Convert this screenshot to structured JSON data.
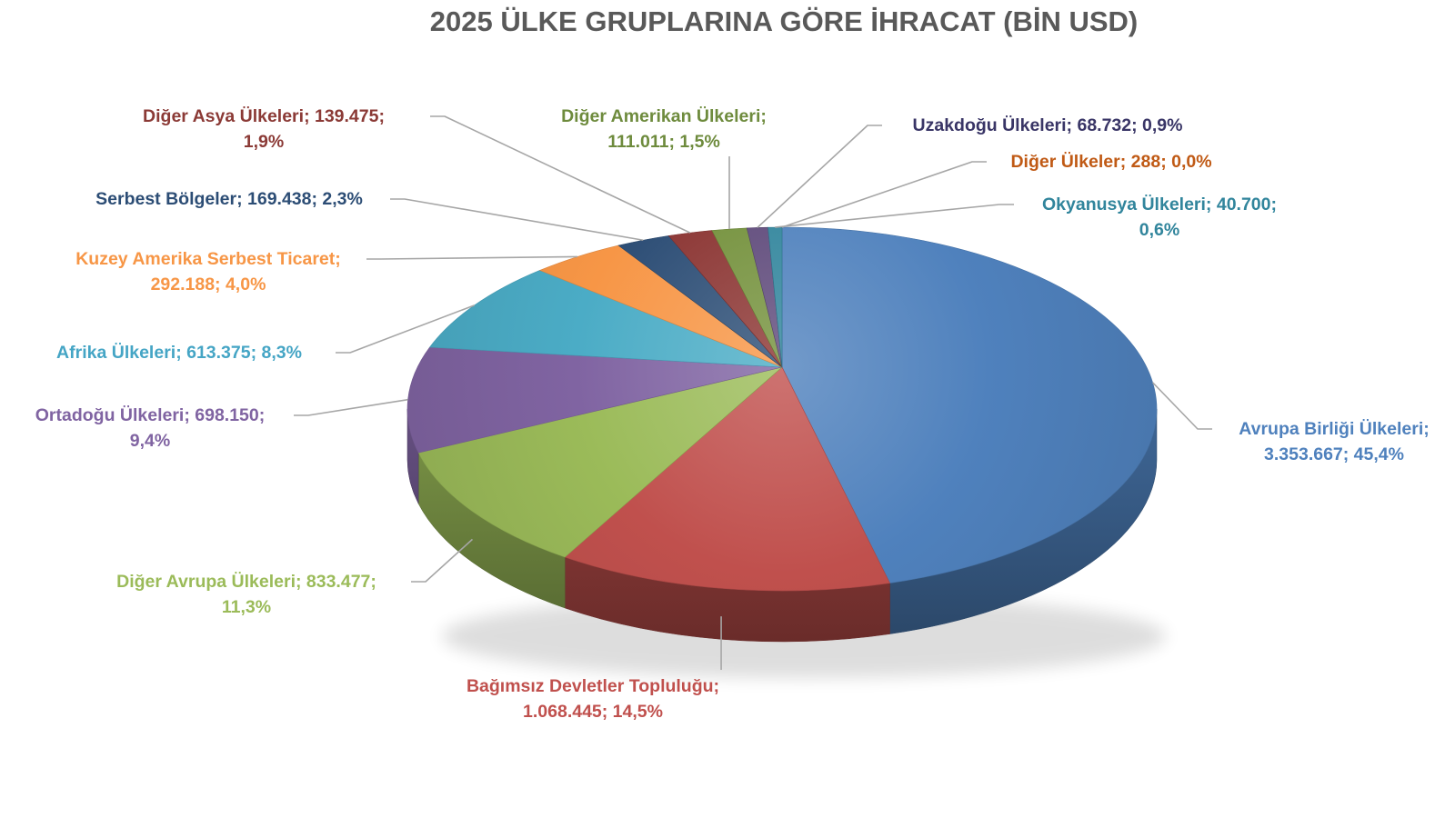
{
  "title": "2025 ÜLKE GRUPLARINA GÖRE İHRACAT (BİN USD)",
  "chart_data": {
    "type": "pie",
    "style": "3d",
    "title": "2025 ÜLKE GRUPLARINA GÖRE İHRACAT (BİN USD)",
    "unit": "BİN USD",
    "direction": "clockwise",
    "start_angle": "top",
    "legend_position": "none",
    "label_format": "name; value; percent",
    "leader_line_color": "#A6A6A6",
    "title_color": "#595959",
    "slices": [
      {
        "id": "avrupa-birligi-ulkeleri",
        "label": "Avrupa Birliği Ülkeleri",
        "value": "3.353.667",
        "value_num": 3353667,
        "percent": "45,4%",
        "percent_num": 45.4,
        "color": "#4F81BD",
        "label_color": "#4F81BD",
        "label_text": "Avrupa Birliği Ülkeleri;\n3.353.667; 45,4%"
      },
      {
        "id": "bagimsiz-devletler-toplulugu",
        "label": "Bağımsız Devletler Topluluğu",
        "value": "1.068.445",
        "value_num": 1068445,
        "percent": "14,5%",
        "percent_num": 14.5,
        "color": "#C0504D",
        "label_color": "#C0504D",
        "label_text": "Bağımsız Devletler Topluluğu;\n1.068.445; 14,5%"
      },
      {
        "id": "diger-avrupa-ulkeleri",
        "label": "Diğer Avrupa Ülkeleri",
        "value": "833.477",
        "value_num": 833477,
        "percent": "11,3%",
        "percent_num": 11.3,
        "color": "#9BBB59",
        "label_color": "#9BBB59",
        "label_text": "Diğer Avrupa Ülkeleri; 833.477;\n11,3%"
      },
      {
        "id": "ortadogu-ulkeleri",
        "label": "Ortadoğu Ülkeleri",
        "value": "698.150",
        "value_num": 698150,
        "percent": "9,4%",
        "percent_num": 9.4,
        "color": "#8064A2",
        "label_color": "#8064A2",
        "label_text": "Ortadoğu Ülkeleri; 698.150;\n9,4%"
      },
      {
        "id": "afrika-ulkeleri",
        "label": "Afrika Ülkeleri",
        "value": "613.375",
        "value_num": 613375,
        "percent": "8,3%",
        "percent_num": 8.3,
        "color": "#4BACC6",
        "label_color": "#45A5C5",
        "label_text": "Afrika Ülkeleri; 613.375; 8,3%"
      },
      {
        "id": "kuzey-amerika-serbest-ticaret",
        "label": "Kuzey Amerika Serbest Ticaret",
        "value": "292.188",
        "value_num": 292188,
        "percent": "4,0%",
        "percent_num": 4.0,
        "color": "#F79646",
        "label_color": "#F79646",
        "label_text": "Kuzey Amerika Serbest Ticaret;\n292.188; 4,0%"
      },
      {
        "id": "serbest-bolgeler",
        "label": "Serbest Bölgeler",
        "value": "169.438",
        "value_num": 169438,
        "percent": "2,3%",
        "percent_num": 2.3,
        "color": "#2C4D75",
        "label_color": "#2C4D75",
        "label_text": "Serbest Bölgeler; 169.438; 2,3%"
      },
      {
        "id": "diger-asya-ulkeleri",
        "label": "Diğer Asya Ülkeleri",
        "value": "139.475",
        "value_num": 139475,
        "percent": "1,9%",
        "percent_num": 1.9,
        "color": "#8B3432",
        "label_color": "#8B3A36",
        "label_text": "Diğer Asya Ülkeleri; 139.475;\n1,9%"
      },
      {
        "id": "diger-amerikan-ulkeleri",
        "label": "Diğer Amerikan Ülkeleri",
        "value": "111.011",
        "value_num": 111011,
        "percent": "1,5%",
        "percent_num": 1.5,
        "color": "#74913C",
        "label_color": "#6E8B3D",
        "label_text": "Diğer Amerikan Ülkeleri;\n111.011; 1,5%"
      },
      {
        "id": "uzakdogu-ulkeleri",
        "label": "Uzakdoğu Ülkeleri",
        "value": "68.732",
        "value_num": 68732,
        "percent": "0,9%",
        "percent_num": 0.9,
        "color": "#5F4A7B",
        "label_color": "#393566",
        "label_text": "Uzakdoğu Ülkeleri; 68.732; 0,9%"
      },
      {
        "id": "okyanusya-ulkeleri",
        "label": "Okyanusya Ülkeleri",
        "value": "40.700",
        "value_num": 40700,
        "percent": "0,6%",
        "percent_num": 0.6,
        "color": "#31859C",
        "label_color": "#31859C",
        "label_text": "Okyanusya Ülkeleri; 40.700;\n0,6%"
      },
      {
        "id": "diger-ulkeler",
        "label": "Diğer Ülkeler",
        "value": "288",
        "value_num": 288,
        "percent": "0,0%",
        "percent_num": 0.0,
        "color": "#C05A15",
        "label_color": "#C05A15",
        "label_text": "Diğer Ülkeler; 288; 0,0%"
      }
    ]
  }
}
